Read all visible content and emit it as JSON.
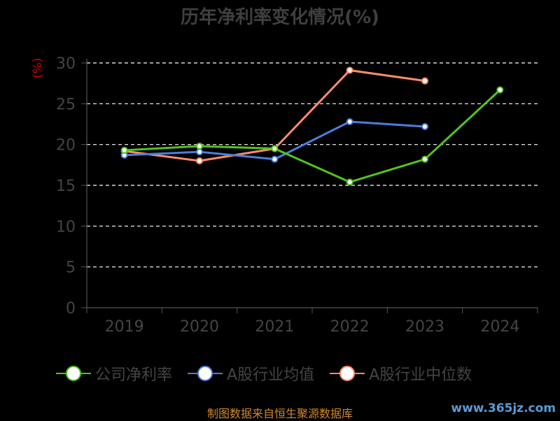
{
  "title": "历年净利率变化情况(%)",
  "unit_label": "(%)",
  "source": "制图数据来自恒生聚源数据库",
  "watermark": "www.365jz.com",
  "legend": [
    {
      "label": "公司净利率",
      "color": "#52c41a"
    },
    {
      "label": "A股行业均值",
      "color": "#4a7edc"
    },
    {
      "label": "A股行业中位数",
      "color": "#ff8c69"
    }
  ],
  "chart_data": {
    "type": "line",
    "title": "历年净利率变化情况(%)",
    "ylabel": "(%)",
    "xlabel": "",
    "categories": [
      "2019",
      "2020",
      "2021",
      "2022",
      "2023",
      "2024"
    ],
    "ylim": [
      0,
      30
    ],
    "yticks": [
      0,
      5,
      10,
      15,
      20,
      25,
      30
    ],
    "grid": true,
    "legend_position": "bottom",
    "series": [
      {
        "name": "公司净利率",
        "color": "#52c41a",
        "values": [
          19.3,
          19.8,
          19.5,
          15.4,
          18.2,
          26.7
        ]
      },
      {
        "name": "A股行业均值",
        "color": "#4a7edc",
        "values": [
          18.7,
          19.1,
          18.2,
          22.8,
          22.2,
          null
        ]
      },
      {
        "name": "A股行业中位数",
        "color": "#ff8c69",
        "values": [
          19.2,
          18.0,
          19.5,
          29.1,
          27.8,
          null
        ]
      }
    ]
  }
}
